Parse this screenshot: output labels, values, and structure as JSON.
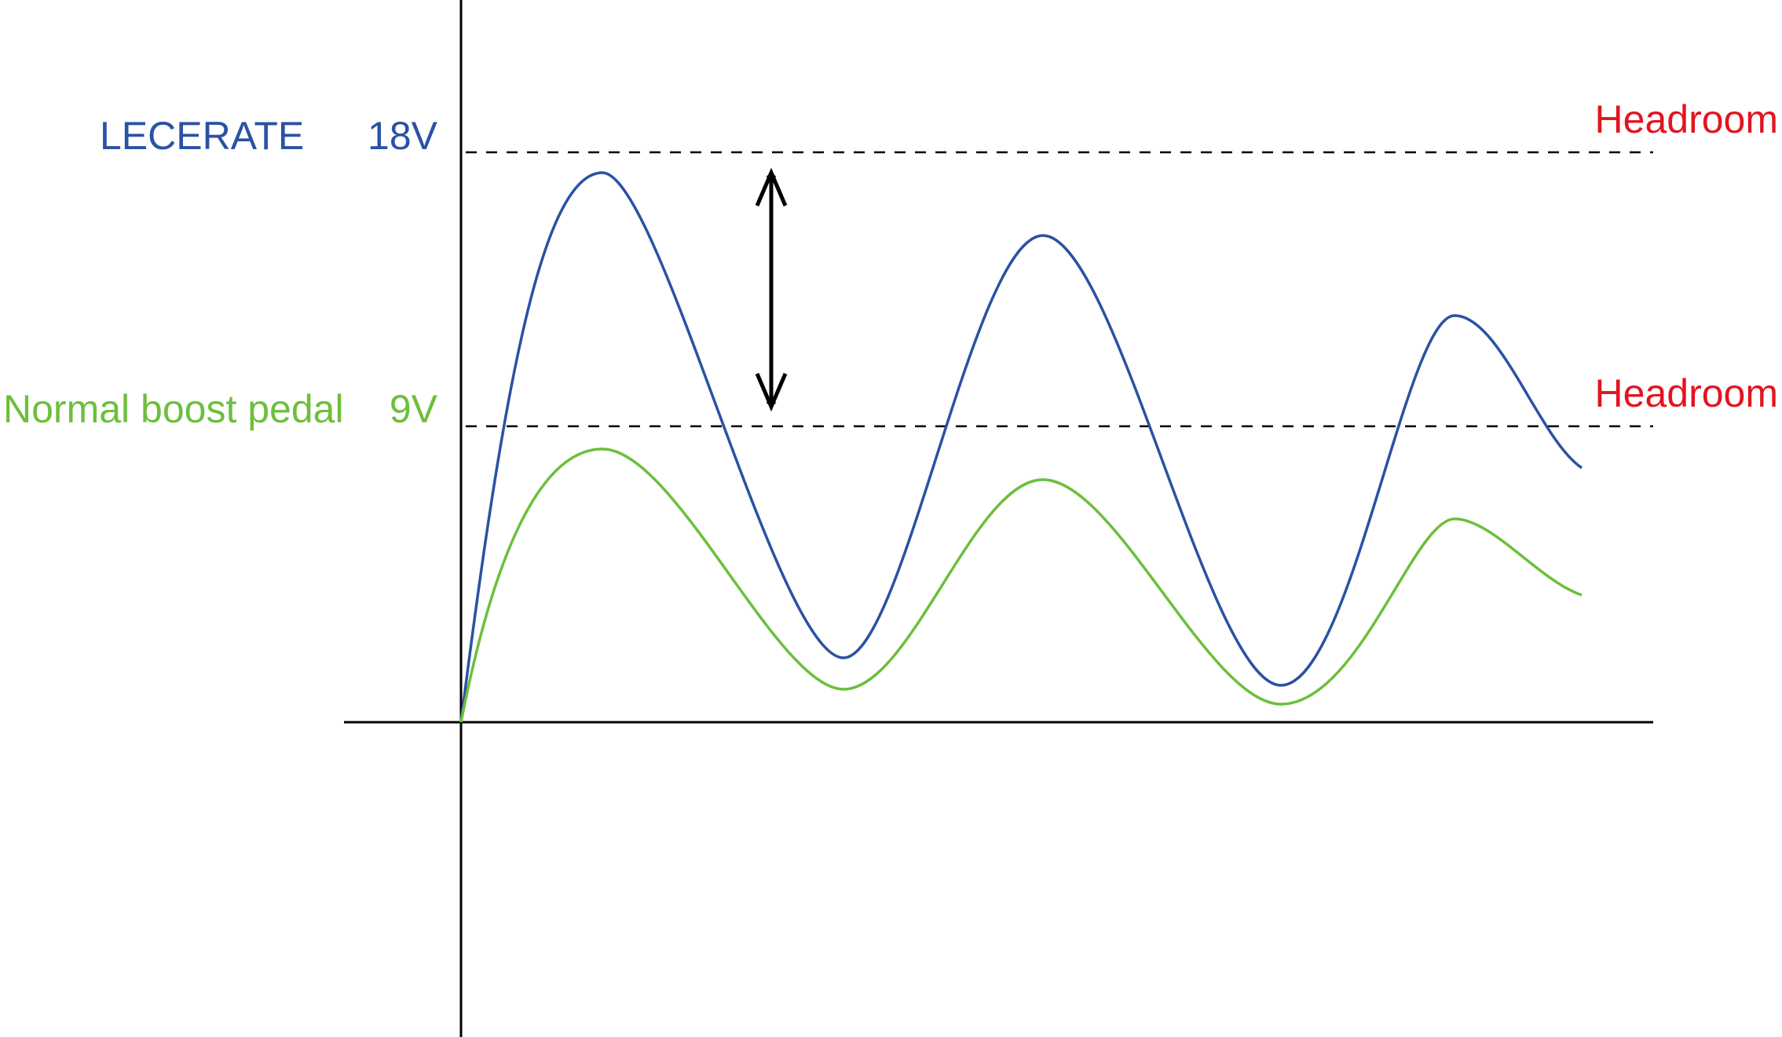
{
  "levels": [
    {
      "name": "LECERATE",
      "voltage": "18V",
      "note": "Headroom"
    },
    {
      "name": "Normal boost pedal",
      "voltage": "9V",
      "note": "Headroom"
    }
  ]
}
